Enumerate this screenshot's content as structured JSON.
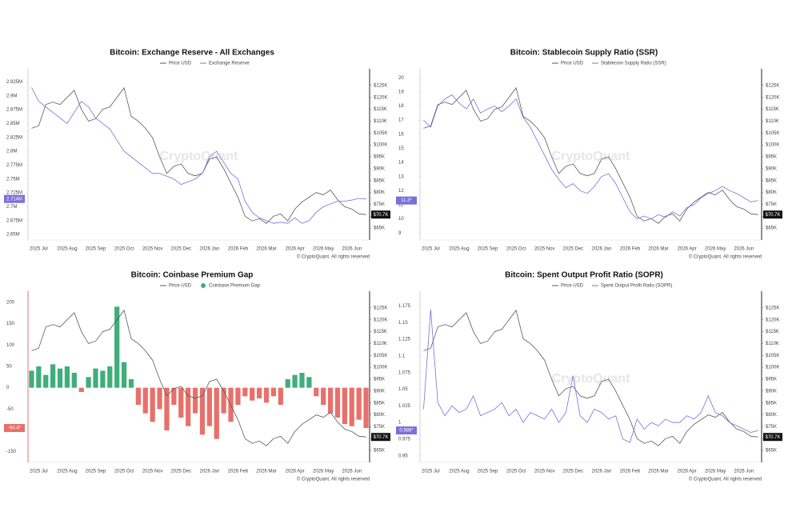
{
  "chart_data": [
    {
      "type": "line",
      "title": "Bitcoin: Exchange Reserve - All Exchanges",
      "watermark": "CryptoQuant",
      "source": "© CryptoQuant. All rights reserved",
      "categories": [
        null,
        "2025 Jul",
        null,
        null,
        null,
        "2025 Aug",
        null,
        null,
        null,
        "2025 Sep",
        null,
        null,
        null,
        "2025 Oct",
        null,
        null,
        null,
        "2025 Nov",
        null,
        null,
        null,
        "2025 Dec",
        null,
        null,
        null,
        "2026 Jan",
        null,
        null,
        null,
        "2026 Feb",
        null,
        null,
        null,
        "2026 Mar",
        null,
        null,
        null,
        "2026 Apr",
        null,
        null,
        null,
        "2026 May",
        null,
        null,
        null,
        "2026 Jun",
        null,
        null
      ],
      "ylim": [
        2640000,
        2940000
      ],
      "yticks": [
        {
          "value": 2650000,
          "label": "2.65M"
        },
        {
          "value": 2675000,
          "label": "2.675M"
        },
        {
          "value": 2700000,
          "label": "2.7M"
        },
        {
          "value": 2725000,
          "label": "2.725M"
        },
        {
          "value": 2750000,
          "label": "2.75M"
        },
        {
          "value": 2775000,
          "label": "2.775M"
        },
        {
          "value": 2800000,
          "label": "2.8M"
        },
        {
          "value": 2825000,
          "label": "2.825M"
        },
        {
          "value": 2850000,
          "label": "2.85M"
        },
        {
          "value": 2875000,
          "label": "2.875M"
        },
        {
          "value": 2900000,
          "label": "2.9M"
        },
        {
          "value": 2925000,
          "label": "2.925M"
        }
      ],
      "y2lim": [
        60000,
        130000
      ],
      "y2ticks": [
        {
          "value": 65000,
          "label": "$65K"
        },
        {
          "value": 70000,
          "label": "$70K"
        },
        {
          "value": 75000,
          "label": "$75K"
        },
        {
          "value": 80000,
          "label": "$80K"
        },
        {
          "value": 85000,
          "label": "$85K"
        },
        {
          "value": 90000,
          "label": "$90K"
        },
        {
          "value": 95000,
          "label": "$95K"
        },
        {
          "value": 100000,
          "label": "$100K"
        },
        {
          "value": 105000,
          "label": "$105K"
        },
        {
          "value": 110000,
          "label": "$110K"
        },
        {
          "value": 115000,
          "label": "$115K"
        },
        {
          "value": 120000,
          "label": "$120K"
        },
        {
          "value": 125000,
          "label": "$125K"
        }
      ],
      "series": [
        {
          "name": "Price USD",
          "color": "#5a5a5a",
          "axis": "y2",
          "tag": "$70.7K",
          "values": [
            107000,
            108000,
            117000,
            118000,
            117000,
            120000,
            123000,
            115000,
            110000,
            111000,
            115000,
            116000,
            120000,
            124000,
            112000,
            110000,
            107000,
            103000,
            95000,
            88000,
            91000,
            92000,
            88000,
            87000,
            88000,
            94000,
            95000,
            90000,
            84000,
            78000,
            70000,
            68000,
            69000,
            67000,
            70000,
            71000,
            68000,
            73000,
            76000,
            78000,
            80000,
            79000,
            81000,
            77000,
            74000,
            73000,
            71000,
            70700
          ]
        },
        {
          "name": "Exchange Reserve",
          "color": "#7b6fd8",
          "axis": "y",
          "tag": "2.714M",
          "values": [
            2915000,
            2890000,
            2880000,
            2870000,
            2860000,
            2850000,
            2870000,
            2890000,
            2880000,
            2860000,
            2850000,
            2840000,
            2820000,
            2800000,
            2790000,
            2780000,
            2770000,
            2760000,
            2760000,
            2755000,
            2750000,
            2740000,
            2745000,
            2750000,
            2760000,
            2790000,
            2800000,
            2780000,
            2760000,
            2750000,
            2710000,
            2690000,
            2680000,
            2675000,
            2670000,
            2672000,
            2670000,
            2680000,
            2670000,
            2675000,
            2690000,
            2700000,
            2705000,
            2710000,
            2710000,
            2712000,
            2715000,
            2714000
          ]
        }
      ]
    },
    {
      "type": "line",
      "title": "Bitcoin: Stablecoin Supply Ratio (SSR)",
      "watermark": "CryptoQuant",
      "source": "© CryptoQuant. All rights reserved",
      "categories": [
        null,
        "2025 Jul",
        null,
        null,
        null,
        "2025 Aug",
        null,
        null,
        null,
        "2025 Sep",
        null,
        null,
        null,
        "2025 Oct",
        null,
        null,
        null,
        "2025 Nov",
        null,
        null,
        null,
        "2025 Dec",
        null,
        null,
        null,
        "2026 Jan",
        null,
        null,
        null,
        "2026 Feb",
        null,
        null,
        null,
        "2026 Mar",
        null,
        null,
        null,
        "2026 Apr",
        null,
        null,
        null,
        "2026 May",
        null,
        null,
        null,
        "2026 Jun",
        null,
        null
      ],
      "ylim": [
        8.5,
        20.3
      ],
      "yticks": [
        9,
        10,
        11,
        12,
        13,
        14,
        15,
        16,
        17,
        18,
        19,
        20
      ],
      "y2lim": [
        60000,
        130000
      ],
      "y2ticks": [
        {
          "value": 65000,
          "label": "$65K"
        },
        {
          "value": 70000,
          "label": "$70K"
        },
        {
          "value": 75000,
          "label": "$75K"
        },
        {
          "value": 80000,
          "label": "$80K"
        },
        {
          "value": 85000,
          "label": "$85K"
        },
        {
          "value": 90000,
          "label": "$90K"
        },
        {
          "value": 95000,
          "label": "$95K"
        },
        {
          "value": 100000,
          "label": "$100K"
        },
        {
          "value": 105000,
          "label": "$105K"
        },
        {
          "value": 110000,
          "label": "$110K"
        },
        {
          "value": 115000,
          "label": "$115K"
        },
        {
          "value": 120000,
          "label": "$120K"
        },
        {
          "value": 125000,
          "label": "$125K"
        }
      ],
      "series": [
        {
          "name": "Price USD",
          "color": "#5a5a5a",
          "axis": "y2",
          "tag": "$70.7K",
          "values": [
            107000,
            108000,
            117000,
            118000,
            117000,
            120000,
            123000,
            115000,
            110000,
            111000,
            115000,
            116000,
            120000,
            124000,
            112000,
            110000,
            107000,
            103000,
            95000,
            88000,
            91000,
            92000,
            88000,
            87000,
            88000,
            94000,
            95000,
            90000,
            84000,
            78000,
            70000,
            68000,
            69000,
            67000,
            70000,
            71000,
            68000,
            73000,
            76000,
            78000,
            80000,
            79000,
            81000,
            77000,
            74000,
            73000,
            71000,
            70700
          ]
        },
        {
          "name": "Stablecoin Supply Ratio (SSR)",
          "color": "#7b6fd8",
          "axis": "y",
          "tag": "11.3*",
          "values": [
            17,
            16.5,
            18,
            18.5,
            18.8,
            18.2,
            17.8,
            18.5,
            17.5,
            17.8,
            18,
            17.6,
            18,
            18.5,
            17.2,
            16.5,
            15.5,
            14.5,
            13.5,
            12.8,
            12.2,
            12.5,
            12,
            11.8,
            12.3,
            13,
            13.2,
            12.5,
            11.5,
            10.5,
            10,
            10.2,
            10,
            10.3,
            10.1,
            10.5,
            10.2,
            10.8,
            11,
            11.5,
            11.8,
            12,
            12.3,
            12,
            11.8,
            11.5,
            11.2,
            11.3
          ]
        }
      ]
    },
    {
      "type": "bar",
      "title": "Bitcoin: Coinbase Premium Gap",
      "source": "© CryptoQuant. All rights reserved",
      "categories": [
        null,
        "2025 Jul",
        null,
        null,
        null,
        "2025 Aug",
        null,
        null,
        null,
        "2025 Sep",
        null,
        null,
        null,
        "2025 Oct",
        null,
        null,
        null,
        "2025 Nov",
        null,
        null,
        null,
        "2025 Dec",
        null,
        null,
        null,
        "2026 Jan",
        null,
        null,
        null,
        "2026 Feb",
        null,
        null,
        null,
        "2026 Mar",
        null,
        null,
        null,
        "2026 Apr",
        null,
        null,
        null,
        "2026 May",
        null,
        null,
        null,
        "2026 Jun",
        null,
        null
      ],
      "ylim": [
        -175,
        215
      ],
      "yticks": [
        -150,
        -100,
        -50,
        0,
        50,
        100,
        150,
        200
      ],
      "y2lim": [
        60000,
        130000
      ],
      "y2ticks": [
        {
          "value": 65000,
          "label": "$65K"
        },
        {
          "value": 70000,
          "label": "$70K"
        },
        {
          "value": 75000,
          "label": "$75K"
        },
        {
          "value": 80000,
          "label": "$80K"
        },
        {
          "value": 85000,
          "label": "$85K"
        },
        {
          "value": 90000,
          "label": "$90K"
        },
        {
          "value": 95000,
          "label": "$95K"
        },
        {
          "value": 100000,
          "label": "$100K"
        },
        {
          "value": 105000,
          "label": "$105K"
        },
        {
          "value": 110000,
          "label": "$110K"
        },
        {
          "value": 115000,
          "label": "$115K"
        },
        {
          "value": 120000,
          "label": "$120K"
        },
        {
          "value": 125000,
          "label": "$125K"
        }
      ],
      "series": [
        {
          "name": "Price USD",
          "color": "#5a5a5a",
          "axis": "y2",
          "tag": "$70.7K",
          "values": [
            107000,
            108000,
            117000,
            118000,
            117000,
            120000,
            123000,
            115000,
            110000,
            111000,
            115000,
            116000,
            120000,
            124000,
            112000,
            110000,
            107000,
            103000,
            95000,
            88000,
            91000,
            92000,
            88000,
            87000,
            88000,
            94000,
            95000,
            90000,
            84000,
            78000,
            70000,
            68000,
            69000,
            67000,
            70000,
            71000,
            68000,
            73000,
            76000,
            78000,
            80000,
            79000,
            81000,
            77000,
            74000,
            73000,
            71000,
            70700
          ]
        },
        {
          "name": "Coinbase Premium Gap",
          "color": "#3fae7a",
          "negative_color": "#e8706a",
          "axis": "y",
          "tag": "-94.4*",
          "values": [
            40,
            50,
            30,
            55,
            45,
            50,
            35,
            -10,
            25,
            45,
            40,
            50,
            190,
            60,
            20,
            -40,
            -60,
            -80,
            -50,
            -100,
            -40,
            -70,
            -90,
            -60,
            -110,
            -90,
            -120,
            -60,
            -80,
            -40,
            -20,
            -30,
            -25,
            -35,
            -20,
            -40,
            20,
            30,
            35,
            25,
            -20,
            -40,
            -60,
            -70,
            -85,
            -90,
            -75,
            -94.4
          ]
        }
      ]
    },
    {
      "type": "line",
      "title": "Bitcoin: Spent Output Profit Ratio (SOPR)",
      "watermark": "CryptoQuant",
      "source": "© CryptoQuant. All rights reserved",
      "categories": [
        null,
        "2025 Jul",
        null,
        null,
        null,
        "2025 Aug",
        null,
        null,
        null,
        "2025 Sep",
        null,
        null,
        null,
        "2025 Oct",
        null,
        null,
        null,
        "2025 Nov",
        null,
        null,
        null,
        "2025 Dec",
        null,
        null,
        null,
        "2026 Jan",
        null,
        null,
        null,
        "2026 Feb",
        null,
        null,
        null,
        "2026 Mar",
        null,
        null,
        null,
        "2026 Apr",
        null,
        null,
        null,
        "2026 May",
        null,
        null,
        null,
        "2026 Jun",
        null,
        null
      ],
      "ylim": [
        0.94,
        1.19
      ],
      "yticks": [
        0.95,
        0.975,
        1,
        1.025,
        1.05,
        1.075,
        1.1,
        1.125,
        1.15,
        1.175
      ],
      "y2lim": [
        60000,
        130000
      ],
      "y2ticks": [
        {
          "value": 65000,
          "label": "$65K"
        },
        {
          "value": 70000,
          "label": "$70K"
        },
        {
          "value": 75000,
          "label": "$75K"
        },
        {
          "value": 80000,
          "label": "$80K"
        },
        {
          "value": 85000,
          "label": "$85K"
        },
        {
          "value": 90000,
          "label": "$90K"
        },
        {
          "value": 95000,
          "label": "$95K"
        },
        {
          "value": 100000,
          "label": "$100K"
        },
        {
          "value": 105000,
          "label": "$105K"
        },
        {
          "value": 110000,
          "label": "$110K"
        },
        {
          "value": 115000,
          "label": "$115K"
        },
        {
          "value": 120000,
          "label": "$120K"
        },
        {
          "value": 125000,
          "label": "$125K"
        }
      ],
      "series": [
        {
          "name": "Price USD",
          "color": "#5a5a5a",
          "axis": "y2",
          "tag": "$70.7K",
          "values": [
            107000,
            108000,
            117000,
            118000,
            117000,
            120000,
            123000,
            115000,
            110000,
            111000,
            115000,
            116000,
            120000,
            124000,
            112000,
            110000,
            107000,
            103000,
            95000,
            88000,
            91000,
            92000,
            88000,
            87000,
            88000,
            94000,
            95000,
            90000,
            84000,
            78000,
            70000,
            68000,
            69000,
            67000,
            70000,
            71000,
            68000,
            73000,
            76000,
            78000,
            80000,
            79000,
            81000,
            77000,
            74000,
            73000,
            71000,
            70700
          ]
        },
        {
          "name": "Spent Output Profit Ratio (SOPR)",
          "color": "#7b6fd8",
          "axis": "y",
          "tag": "0.988*",
          "values": [
            1.02,
            1.17,
            1.03,
            1.01,
            1.025,
            1.015,
            1.02,
            1.04,
            1.01,
            1.015,
            1.02,
            1.03,
            1.01,
            1.02,
            1.0,
            1.015,
            1.01,
            1.005,
            1.02,
            1.0,
            1.015,
            1.07,
            1.01,
            1.0,
            1.02,
            1.015,
            1.005,
            1.01,
            0.975,
            0.97,
            1.005,
            0.99,
            1.0,
            0.995,
            1.005,
            1.0,
            1.0,
            1.01,
            1.005,
            1.015,
            1.04,
            1.015,
            1.01,
            1.0,
            0.995,
            0.99,
            0.985,
            0.988
          ]
        }
      ]
    }
  ]
}
